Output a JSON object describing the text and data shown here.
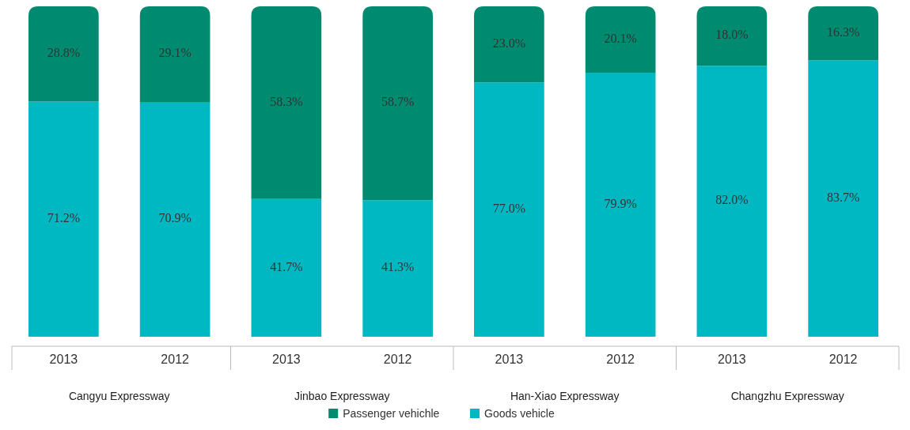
{
  "chart_data": {
    "type": "bar",
    "stacked": true,
    "data_labels": true,
    "legend": "bottom",
    "categories": [
      "2013",
      "2012",
      "2013",
      "2012",
      "2013",
      "2012",
      "2013",
      "2012"
    ],
    "series": [
      {
        "name": "Goods vehicle",
        "color": "#00b8c2",
        "values": [
          71.2,
          70.9,
          41.7,
          41.3,
          77.0,
          79.9,
          82.0,
          83.7
        ],
        "value_labels": [
          "71.2%",
          "70.9%",
          "41.7%",
          "41.3%",
          "77.0%",
          "79.9%",
          "82.0%",
          "83.7%"
        ]
      },
      {
        "name": "Passenger vehichle",
        "color": "#008a70",
        "values": [
          28.8,
          29.1,
          58.3,
          58.7,
          23.0,
          20.1,
          18.0,
          16.3
        ],
        "value_labels": [
          "28.8%",
          "29.1%",
          "58.3%",
          "58.7%",
          "23.0%",
          "20.1%",
          "18.0%",
          "16.3%"
        ]
      }
    ],
    "annotations": [
      "Cangyu Expressway",
      "Jinbao Expressway",
      "Han-Xiao Expressway",
      "Changzhu Expressway"
    ]
  }
}
